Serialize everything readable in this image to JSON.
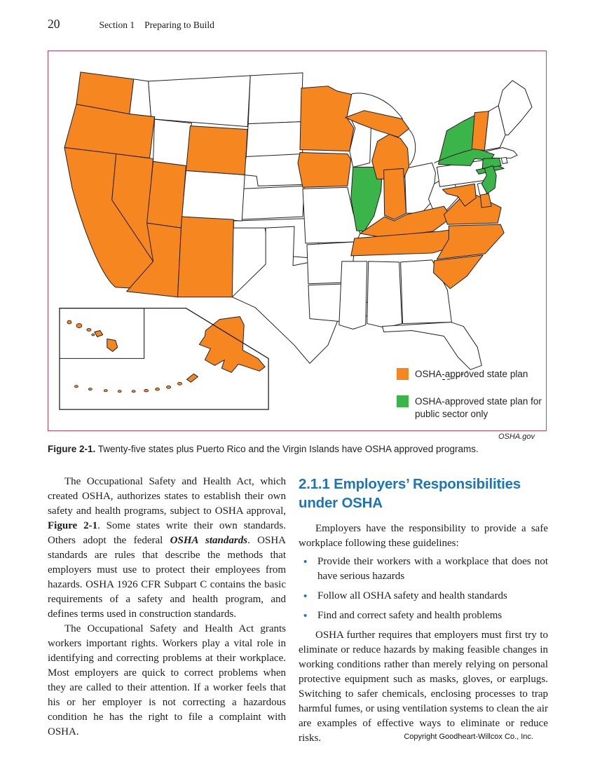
{
  "page": {
    "number": "20",
    "section_header": "Section 1",
    "section_title": "Preparing to Build",
    "footer": "Copyright Goodheart-Willcox Co., Inc."
  },
  "figure": {
    "credit": "OSHA.gov",
    "caption_label": "Figure 2-1.",
    "caption_text": " Twenty-five states plus Puerto Rico and the Virgin Islands have OSHA approved programs.",
    "legend": [
      {
        "label": "OSHA-approved state plan",
        "color": "#F6861F"
      },
      {
        "label": "OSHA-approved state plan for public sector only",
        "color": "#3BB54A"
      }
    ],
    "map": {
      "colors": {
        "state_plan": "#F6861F",
        "public_sector": "#3BB54A",
        "none": "#FFFFFF",
        "border": "#231F20"
      },
      "state_plan_states": [
        "WA",
        "OR",
        "CA",
        "NV",
        "AZ",
        "UT",
        "NM",
        "WY",
        "MN",
        "IA",
        "MI",
        "IN",
        "KY",
        "TN",
        "VA",
        "NC",
        "SC",
        "MD",
        "VT",
        "AK",
        "HI"
      ],
      "public_sector_states": [
        "NY",
        "NJ",
        "CT",
        "IL"
      ]
    }
  },
  "left_column": {
    "p1a": "The Occupational Safety and Health Act, which created OSHA, authorizes states to establish their own safety and health programs, subject to OSHA approval, ",
    "p1b": "Figure 2-1",
    "p1c": ". Some states write their own standards. Others adopt the federal ",
    "p1d": "OSHA standards",
    "p1e": ". OSHA standards are rules that describe the methods that employers must use to protect their employees from hazards. OSHA 1926 CFR Subpart C contains the basic requirements of a safety and health program, and defines terms used in construction standards.",
    "p2": "The Occupational Safety and Health Act grants workers important rights. Workers play a vital role in identifying and correcting problems at their workplace. Most employers are quick to correct problems when they are called to their attention. If a worker feels that his or her employer is not correcting a hazardous condition he has the right to file a complaint with OSHA."
  },
  "right_column": {
    "heading": "2.1.1 Employers’ Responsibilities under OSHA",
    "intro": "Employers have the responsibility to provide a safe workplace following these guidelines:",
    "bullets": [
      "Provide their workers with a workplace that does not have serious hazards",
      "Follow all OSHA safety and health standards",
      "Find and correct safety and health problems"
    ],
    "p2": "OSHA further requires that employers must first try to eliminate or reduce hazards by making feasible changes in working conditions rather than merely relying on personal protective equipment such as masks, gloves, or earplugs. Switching to safer chemicals, enclosing processes to trap harmful fumes, or using ventilation systems to clean the air are examples of effective ways to eliminate or reduce risks."
  }
}
